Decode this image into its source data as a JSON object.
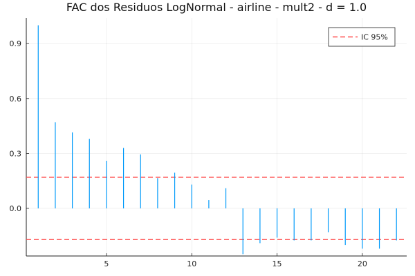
{
  "chart_data": {
    "type": "bar",
    "title": "FAC dos Residuos  LogNormal - airline - mult2 - d = 1.0",
    "xlabel": "",
    "ylabel": "",
    "xlim": [
      0.3,
      22.6
    ],
    "ylim": [
      -0.26,
      1.04
    ],
    "xticks": [
      5,
      10,
      15,
      20
    ],
    "yticks": [
      0.0,
      0.3,
      0.6,
      0.9
    ],
    "ytick_labels": [
      "0.0",
      "0.3",
      "0.6",
      "0.9"
    ],
    "grid": true,
    "legend_position": "top-right",
    "series": [
      {
        "values_x": [
          1,
          2,
          3,
          4,
          5,
          6,
          7,
          8,
          9,
          10,
          11,
          12,
          13,
          14,
          15,
          16,
          17,
          18,
          19,
          20,
          21,
          22
        ],
        "values": [
          1.0,
          0.47,
          0.415,
          0.38,
          0.26,
          0.33,
          0.295,
          0.165,
          0.195,
          0.13,
          0.045,
          0.11,
          -0.25,
          -0.19,
          -0.16,
          -0.175,
          -0.175,
          -0.13,
          -0.2,
          -0.22,
          -0.22,
          -0.175
        ],
        "color": "#009AFA"
      }
    ],
    "reference_lines": [
      {
        "name": "IC 95%",
        "values": [
          0.17,
          -0.17
        ],
        "color": "#FF4D4D",
        "style": "dashed"
      }
    ],
    "legend": [
      "IC 95%"
    ]
  }
}
